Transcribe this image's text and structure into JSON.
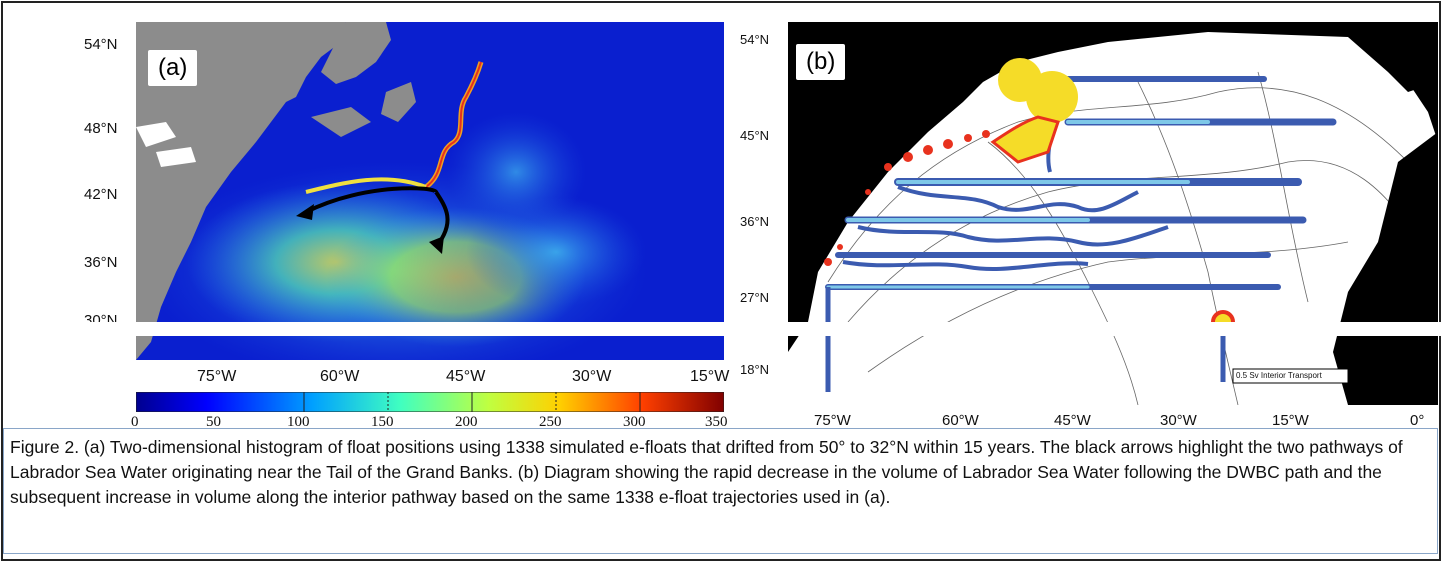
{
  "panel_a": {
    "label": "(a)",
    "lat_labels": [
      "54°N",
      "48°N",
      "42°N",
      "36°N",
      "30°N"
    ],
    "lon_labels": [
      "75°W",
      "60°W",
      "45°W",
      "30°W",
      "15°W"
    ],
    "colorbar_ticks": [
      "0",
      "50",
      "100",
      "150",
      "200",
      "250",
      "300",
      "350"
    ]
  },
  "panel_b": {
    "label": "(b)",
    "lat_labels": [
      "54°N",
      "45°N",
      "36°N",
      "27°N",
      "18°N"
    ],
    "lon_labels": [
      "75°W",
      "60°W",
      "45°W",
      "30°W",
      "15°W",
      "0°"
    ],
    "legend_text": "0.5 Sv Interior Transport"
  },
  "colors": {
    "ocean_a": "#0a1fcf",
    "land_a": "#8c8c8c",
    "ocean_b": "#ffffff",
    "land_b": "#000000",
    "pathway_dark": "#3b5bb0",
    "pathway_light": "#7ec8e8",
    "dwbc_red": "#e8321e",
    "dwbc_yellow": "#f5dc28"
  },
  "caption": "Figure 2. (a) Two-dimensional histogram of float positions using 1338 simulated e-floats that drifted from 50° to 32°N within 15 years. The black arrows highlight the two pathways of Labrador Sea Water originating near the Tail of the Grand Banks. (b) Diagram showing the rapid decrease in the volume of Labrador Sea Water following the DWBC path and the subsequent increase in volume along the interior pathway based on the same 1338 e-float trajectories used in (a)."
}
